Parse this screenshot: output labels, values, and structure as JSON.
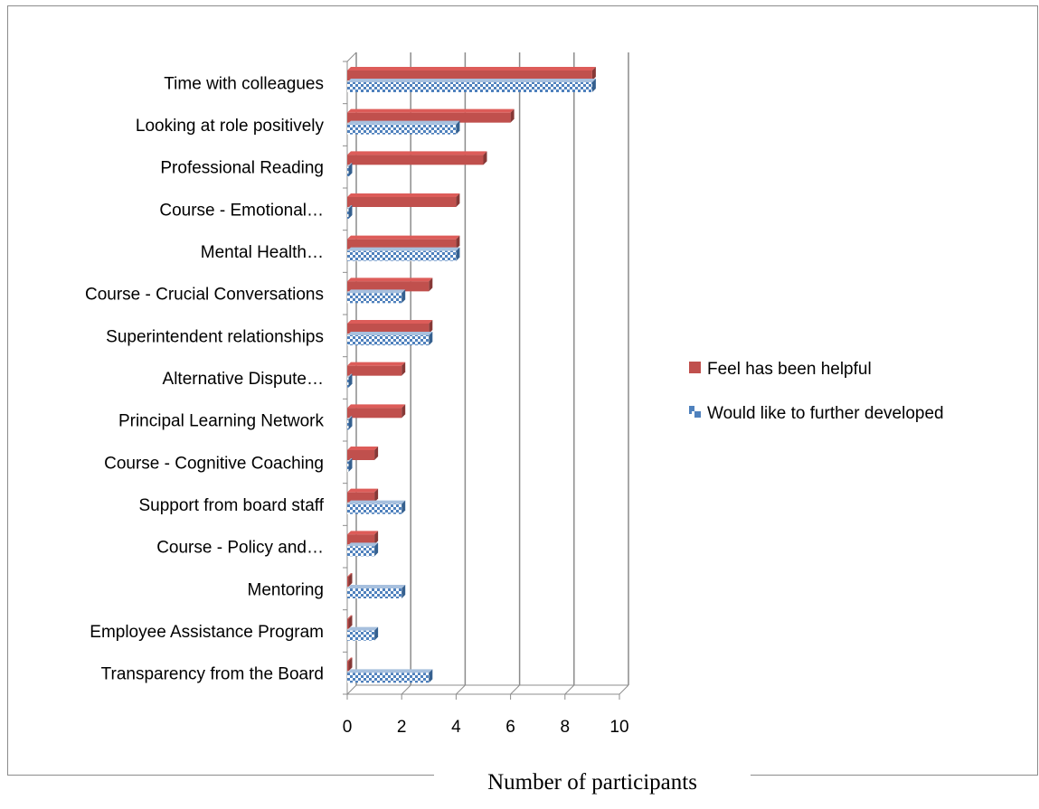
{
  "chart_data": {
    "type": "bar",
    "orientation": "horizontal",
    "categories": [
      "Time with colleagues",
      "Looking at role positively",
      "Professional Reading",
      "Course - Emotional…",
      "Mental Health…",
      "Course - Crucial Conversations",
      "Superintendent relationships",
      "Alternative Dispute…",
      "Principal Learning Network",
      "Course - Cognitive Coaching",
      "Support from board staff",
      "Course - Policy and…",
      "Mentoring",
      "Employee Assistance Program",
      "Transparency from the Board"
    ],
    "series": [
      {
        "name": "Feel has been helpful",
        "color": "#c0504d",
        "values": [
          9,
          6,
          5,
          4,
          4,
          3,
          3,
          2,
          2,
          1,
          1,
          1,
          0,
          0,
          0
        ]
      },
      {
        "name": "Would like to further developed",
        "color": "#4f81bd",
        "values": [
          9,
          4,
          0,
          0,
          4,
          2,
          3,
          0,
          0,
          0,
          2,
          1,
          2,
          1,
          3
        ]
      }
    ],
    "xlim": [
      0,
      10
    ],
    "xticks": [
      "0",
      "2",
      "4",
      "6",
      "8",
      "10"
    ],
    "xlabel": "Number of participants",
    "grid": true,
    "legend_position": "right"
  }
}
